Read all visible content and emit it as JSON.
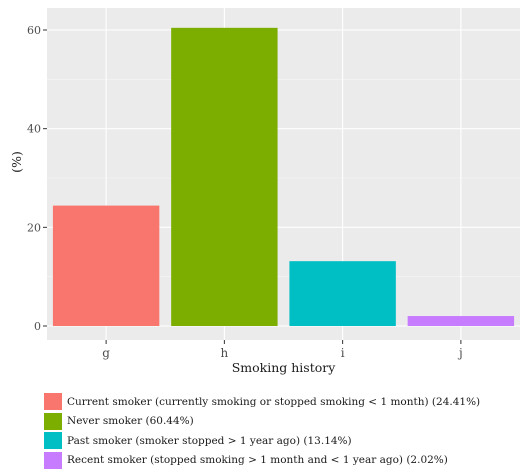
{
  "chart_data": {
    "type": "bar",
    "categories": [
      "g",
      "h",
      "i",
      "j"
    ],
    "values": [
      24.41,
      60.44,
      13.14,
      2.02
    ],
    "colors": [
      "#F8766D",
      "#7CAE00",
      "#00BFC4",
      "#C77CFF"
    ],
    "ylabel": "(%)",
    "xlabel": "Smoking history",
    "ylim": [
      0,
      63
    ],
    "yticks": [
      0,
      20,
      40,
      60
    ],
    "grid": true,
    "panel_background": "#EBEBEB",
    "legend": {
      "placement": "bottom",
      "entries": [
        "Current smoker (currently smoking or stopped smoking < 1 month) (24.41%)",
        "Never smoker (60.44%)",
        "Past smoker (smoker stopped > 1 year ago) (13.14%)",
        "Recent smoker (stopped smoking > 1 month and < 1 year ago) (2.02%)"
      ]
    }
  }
}
